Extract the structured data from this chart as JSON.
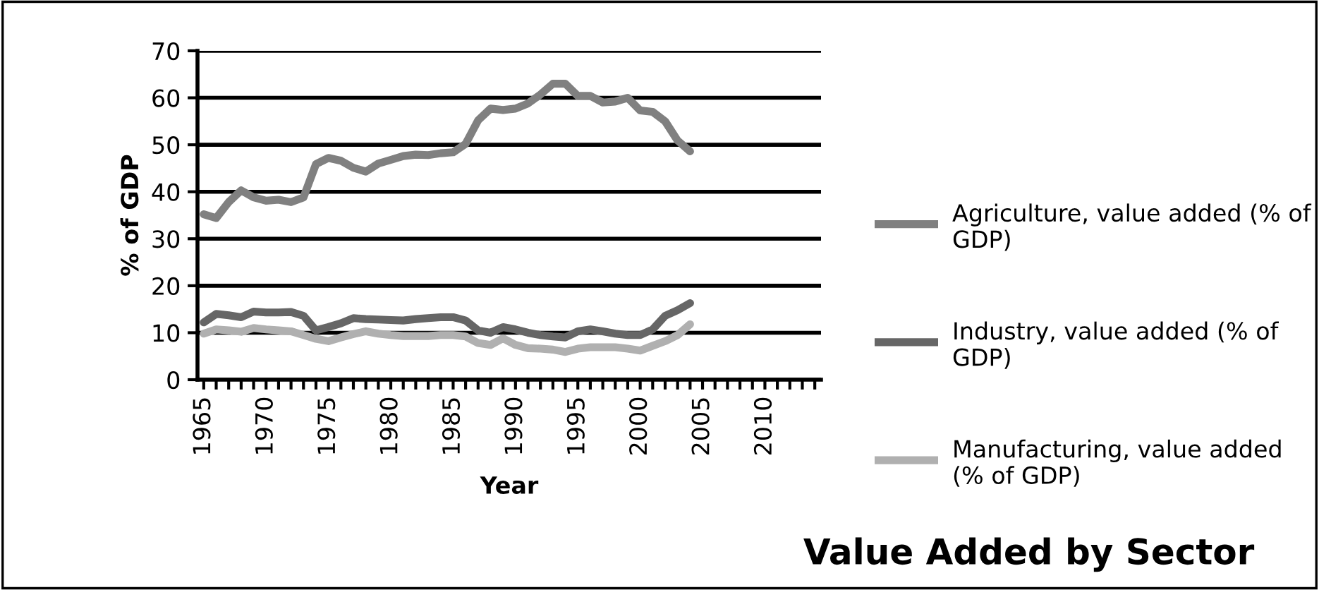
{
  "chart_data": {
    "type": "line",
    "title": "Value Added by Sector",
    "xlabel": "Year",
    "ylabel": "% of GDP",
    "categories": [
      "1965",
      null,
      null,
      null,
      null,
      "1970",
      null,
      null,
      null,
      null,
      "1975",
      null,
      null,
      null,
      null,
      "1980",
      null,
      null,
      null,
      null,
      "1985",
      null,
      null,
      null,
      null,
      "1990",
      null,
      null,
      null,
      null,
      "1995",
      null,
      null,
      null,
      null,
      "2000",
      null,
      null,
      null,
      null,
      "2005",
      null,
      null,
      null,
      null,
      "2010",
      null,
      null,
      null,
      null
    ],
    "series": [
      {
        "name": "Agriculture, value added (% of GDP)",
        "color": "#808080",
        "values": [
          35.2,
          34.4,
          37.8,
          40.3,
          38.8,
          38.1,
          38.3,
          37.8,
          38.8,
          45.9,
          47.2,
          46.6,
          45.1,
          44.3,
          46.0,
          46.8,
          47.6,
          47.9,
          47.8,
          48.2,
          48.4,
          50.2,
          55.2,
          57.7,
          57.4,
          57.7,
          58.8,
          60.7,
          63.0,
          63.0,
          60.4,
          60.4,
          59.0,
          59.2,
          60.0,
          57.3,
          57.0,
          55.0,
          50.9,
          48.6,
          null,
          null,
          null,
          null,
          null,
          null,
          null,
          null,
          null,
          null
        ]
      },
      {
        "name": "Industry, value added (% of GDP)",
        "color": "#666666",
        "values": [
          12.2,
          14.0,
          13.7,
          13.3,
          14.5,
          14.3,
          14.3,
          14.4,
          13.6,
          10.5,
          11.2,
          12.0,
          13.1,
          12.9,
          12.8,
          12.7,
          12.6,
          12.9,
          13.1,
          13.3,
          13.3,
          12.6,
          10.5,
          10.0,
          11.2,
          10.7,
          10.0,
          9.5,
          9.2,
          9.0,
          10.3,
          10.7,
          10.3,
          9.8,
          9.5,
          9.5,
          10.7,
          13.6,
          14.8,
          16.3,
          null,
          null,
          null,
          null,
          null,
          null,
          null,
          null,
          null,
          null
        ]
      },
      {
        "name": "Manufacturing, value added (% of GDP)",
        "color": "#b0b0b0",
        "values": [
          9.8,
          10.7,
          10.5,
          10.2,
          11.0,
          10.7,
          10.5,
          10.3,
          9.5,
          8.7,
          8.2,
          9.0,
          9.7,
          10.3,
          9.8,
          9.5,
          9.3,
          9.3,
          9.3,
          9.5,
          9.5,
          9.2,
          7.8,
          7.4,
          8.8,
          7.4,
          6.7,
          6.6,
          6.4,
          5.9,
          6.6,
          6.9,
          6.9,
          6.9,
          6.6,
          6.2,
          7.2,
          8.2,
          9.5,
          11.8,
          null,
          null,
          null,
          null,
          null,
          null,
          null,
          null,
          null,
          null
        ]
      }
    ],
    "ylim": [
      0,
      70
    ],
    "yticks": [
      0,
      10,
      20,
      30,
      40,
      50,
      60,
      70
    ],
    "grid": "y",
    "legend": "right",
    "marker": "none",
    "line_style": "solid"
  }
}
